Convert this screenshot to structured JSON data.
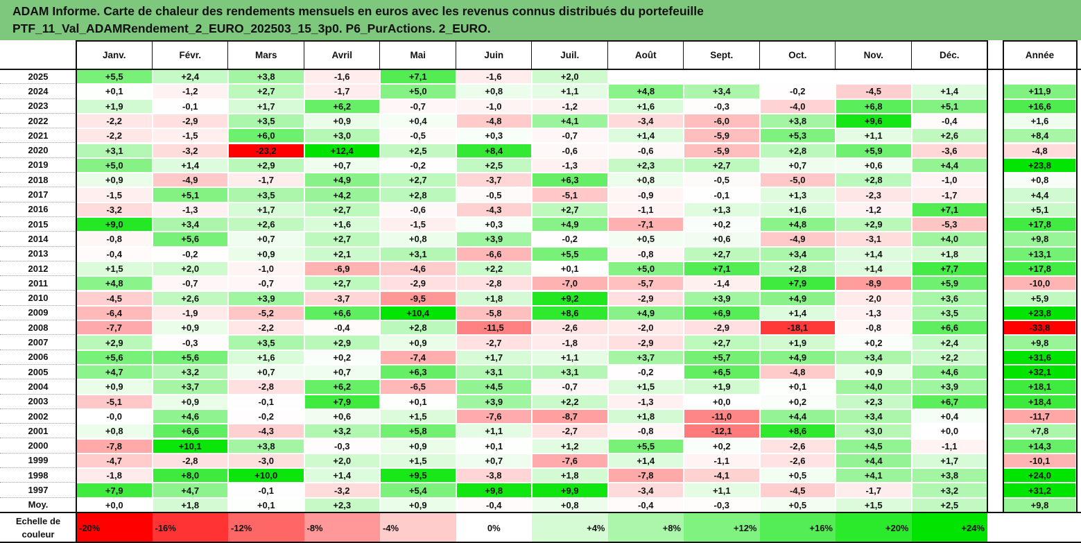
{
  "title": {
    "line1": "ADAM Informe. Carte de chaleur des rendements mensuels en euros avec les revenus connus distribués du portefeuille",
    "line2": "PTF_11_Val_ADAMRendement_2_EURO_202503_15_3p0. P6_PurActions. 2_EURO."
  },
  "chart_data": {
    "type": "heatmap",
    "columns": [
      "Janv.",
      "Févr.",
      "Mars",
      "Avril",
      "Mai",
      "Juin",
      "Juil.",
      "Août",
      "Sept.",
      "Oct.",
      "Nov.",
      "Déc."
    ],
    "year_column": "Année",
    "rows": [
      {
        "year": "2025",
        "months": [
          "+5,5",
          "+2,4",
          "+3,8",
          "-1,6",
          "+7,1",
          "-1,6",
          "+2,0",
          "",
          "",
          "",
          "",
          ""
        ],
        "annual": ""
      },
      {
        "year": "2024",
        "months": [
          "+0,1",
          "-1,2",
          "+2,7",
          "-1,7",
          "+5,0",
          "+0,8",
          "+1,1",
          "+4,8",
          "+3,4",
          "-0,2",
          "-4,5",
          "+1,4"
        ],
        "annual": "+11,9"
      },
      {
        "year": "2023",
        "months": [
          "+1,9",
          "-0,1",
          "+1,7",
          "+6,2",
          "-0,7",
          "-1,0",
          "-1,2",
          "+1,6",
          "-0,3",
          "-4,0",
          "+6,8",
          "+5,1"
        ],
        "annual": "+16,6"
      },
      {
        "year": "2022",
        "months": [
          "-2,2",
          "-2,9",
          "+3,5",
          "+0,9",
          "+0,4",
          "-4,8",
          "+4,1",
          "-3,4",
          "-6,0",
          "+3,8",
          "+9,6",
          "-0,4"
        ],
        "annual": "+1,6"
      },
      {
        "year": "2021",
        "months": [
          "-2,2",
          "-1,5",
          "+6,0",
          "+3,0",
          "-0,5",
          "+0,3",
          "-0,7",
          "+1,4",
          "-5,9",
          "+5,3",
          "+1,1",
          "+2,6"
        ],
        "annual": "+8,4"
      },
      {
        "year": "2020",
        "months": [
          "+3,1",
          "-3,2",
          "-23,2",
          "+12,4",
          "+2,5",
          "+8,4",
          "-0,6",
          "-0,6",
          "-5,9",
          "+2,8",
          "+5,9",
          "-3,6"
        ],
        "annual": "-4,8"
      },
      {
        "year": "2019",
        "months": [
          "+5,0",
          "+1,4",
          "+2,9",
          "+0,7",
          "-0,2",
          "+2,5",
          "-1,3",
          "+2,3",
          "+2,7",
          "+0,7",
          "+0,6",
          "+4,4"
        ],
        "annual": "+23,8"
      },
      {
        "year": "2018",
        "months": [
          "+0,9",
          "-4,9",
          "-1,7",
          "+4,9",
          "+2,7",
          "-3,7",
          "+6,3",
          "+0,8",
          "-0,5",
          "-5,0",
          "+2,8",
          "-1,0"
        ],
        "annual": "+0,8"
      },
      {
        "year": "2017",
        "months": [
          "-1,5",
          "+5,1",
          "+3,5",
          "+4,2",
          "+2,8",
          "-0,5",
          "-5,1",
          "-0,9",
          "-0,1",
          "+1,3",
          "-2,3",
          "-1,7"
        ],
        "annual": "+4,4"
      },
      {
        "year": "2016",
        "months": [
          "-3,2",
          "-1,3",
          "+1,7",
          "+2,7",
          "-0,6",
          "-4,3",
          "+2,7",
          "-1,1",
          "+1,3",
          "+1,6",
          "-1,2",
          "+7,1"
        ],
        "annual": "+5,1"
      },
      {
        "year": "2015",
        "months": [
          "+9,0",
          "+3,4",
          "+2,6",
          "+1,6",
          "-1,5",
          "+0,3",
          "+4,9",
          "-7,1",
          "+0,2",
          "+4,8",
          "+2,9",
          "-5,3"
        ],
        "annual": "+17,8"
      },
      {
        "year": "2014",
        "months": [
          "-0,8",
          "+5,6",
          "+0,7",
          "+2,7",
          "+0,8",
          "+3,9",
          "-0,2",
          "+0,5",
          "+0,6",
          "-4,9",
          "-3,1",
          "+4,0"
        ],
        "annual": "+9,8"
      },
      {
        "year": "2013",
        "months": [
          "-0,4",
          "-0,2",
          "+0,9",
          "+2,1",
          "+3,1",
          "-6,6",
          "+5,5",
          "-0,8",
          "+2,7",
          "+3,4",
          "+1,4",
          "+1,8"
        ],
        "annual": "+13,1"
      },
      {
        "year": "2012",
        "months": [
          "+1,5",
          "+2,0",
          "-1,0",
          "-6,9",
          "-4,6",
          "+2,2",
          "+0,1",
          "+5,0",
          "+7,1",
          "+2,8",
          "+1,4",
          "+7,7"
        ],
        "annual": "+17,8"
      },
      {
        "year": "2011",
        "months": [
          "+4,8",
          "-0,7",
          "-0,7",
          "+2,7",
          "-2,9",
          "-2,8",
          "-7,0",
          "-5,7",
          "-1,4",
          "+7,9",
          "-8,9",
          "+5,9"
        ],
        "annual": "-10,0"
      },
      {
        "year": "2010",
        "months": [
          "-4,5",
          "+2,6",
          "+3,9",
          "-3,7",
          "-9,5",
          "+1,8",
          "+9,2",
          "-2,9",
          "+3,9",
          "+4,9",
          "-2,0",
          "+3,6"
        ],
        "annual": "+5,9"
      },
      {
        "year": "2009",
        "months": [
          "-6,4",
          "-1,9",
          "-5,2",
          "+6,6",
          "+10,4",
          "-5,8",
          "+8,6",
          "+4,9",
          "+6,9",
          "+1,4",
          "-1,3",
          "+3,5"
        ],
        "annual": "+23,8"
      },
      {
        "year": "2008",
        "months": [
          "-7,7",
          "+0,9",
          "-2,2",
          "-0,4",
          "+2,8",
          "-11,5",
          "-2,6",
          "-2,0",
          "-2,9",
          "-18,1",
          "-0,8",
          "+6,6"
        ],
        "annual": "-33,8"
      },
      {
        "year": "2007",
        "months": [
          "+2,9",
          "-0,3",
          "+3,5",
          "+2,9",
          "+0,9",
          "-2,7",
          "-1,8",
          "-2,9",
          "+2,7",
          "+1,9",
          "+0,2",
          "+2,4"
        ],
        "annual": "+9,8"
      },
      {
        "year": "2006",
        "months": [
          "+5,6",
          "+5,6",
          "+1,6",
          "+0,2",
          "-7,4",
          "+1,7",
          "+1,1",
          "+3,7",
          "+5,7",
          "+4,9",
          "+3,4",
          "+2,2"
        ],
        "annual": "+31,6"
      },
      {
        "year": "2005",
        "months": [
          "+4,7",
          "+3,2",
          "+0,7",
          "+0,7",
          "+6,3",
          "+3,1",
          "+3,1",
          "-0,2",
          "+6,5",
          "-4,8",
          "+0,9",
          "+4,6"
        ],
        "annual": "+32,1"
      },
      {
        "year": "2004",
        "months": [
          "+0,9",
          "+3,7",
          "-2,8",
          "+6,2",
          "-6,5",
          "+4,5",
          "-0,7",
          "+1,5",
          "+1,9",
          "+0,1",
          "+4,0",
          "+3,9"
        ],
        "annual": "+18,1"
      },
      {
        "year": "2003",
        "months": [
          "-5,1",
          "+0,9",
          "-0,1",
          "+7,9",
          "+0,1",
          "+3,9",
          "+2,2",
          "-1,3",
          "+0,0",
          "+0,2",
          "+2,3",
          "+6,7"
        ],
        "annual": "+18,4"
      },
      {
        "year": "2002",
        "months": [
          "-0,0",
          "+4,6",
          "-0,2",
          "+0,6",
          "+1,5",
          "-7,6",
          "-8,7",
          "+1,8",
          "-11,0",
          "+4,4",
          "+3,4",
          "+0,4"
        ],
        "annual": "-11,7"
      },
      {
        "year": "2001",
        "months": [
          "+0,8",
          "+6,6",
          "-4,3",
          "+3,2",
          "+5,8",
          "+1,1",
          "-2,7",
          "-0,8",
          "-12,1",
          "+8,6",
          "+3,0",
          "+0,0"
        ],
        "annual": "+7,8"
      },
      {
        "year": "2000",
        "months": [
          "-7,8",
          "+10,1",
          "+3,8",
          "-0,3",
          "+0,9",
          "+0,1",
          "+1,2",
          "+5,5",
          "+0,2",
          "-2,6",
          "+4,5",
          "-1,1"
        ],
        "annual": "+14,3"
      },
      {
        "year": "1999",
        "months": [
          "-4,7",
          "-2,8",
          "-3,0",
          "+2,0",
          "+1,5",
          "+0,7",
          "-7,6",
          "+1,4",
          "-1,1",
          "-2,6",
          "+4,4",
          "+1,7"
        ],
        "annual": "-10,1"
      },
      {
        "year": "1998",
        "months": [
          "-1,8",
          "+8,0",
          "+10,0",
          "+1,4",
          "+9,5",
          "-3,8",
          "+1,8",
          "-7,8",
          "-4,1",
          "+0,5",
          "+4,1",
          "+3,8"
        ],
        "annual": "+24,0"
      },
      {
        "year": "1997",
        "months": [
          "+7,9",
          "+4,7",
          "-0,1",
          "-3,2",
          "+5,4",
          "+9,8",
          "+9,9",
          "-3,4",
          "+1,1",
          "-4,5",
          "-1,7",
          "+3,2"
        ],
        "annual": "+31,2"
      }
    ],
    "average": {
      "label": "Moy.",
      "months": [
        "+0,0",
        "+1,8",
        "+0,1",
        "+2,3",
        "+0,9",
        "-0,4",
        "+0,8",
        "-0,4",
        "-0,3",
        "+0,5",
        "+1,5",
        "+2,5"
      ],
      "annual": "+9,8"
    },
    "color_scale": {
      "label_line1": "Echelle de",
      "label_line2": "couleur",
      "stops": [
        "-20%",
        "-16%",
        "-12%",
        "-8%",
        "-4%",
        "0%",
        "+4%",
        "+8%",
        "+12%",
        "+16%",
        "+20%",
        "+24%"
      ],
      "negative_color": "#ff0000",
      "neutral_color": "#ffffff",
      "positive_color": "#00e600"
    }
  }
}
